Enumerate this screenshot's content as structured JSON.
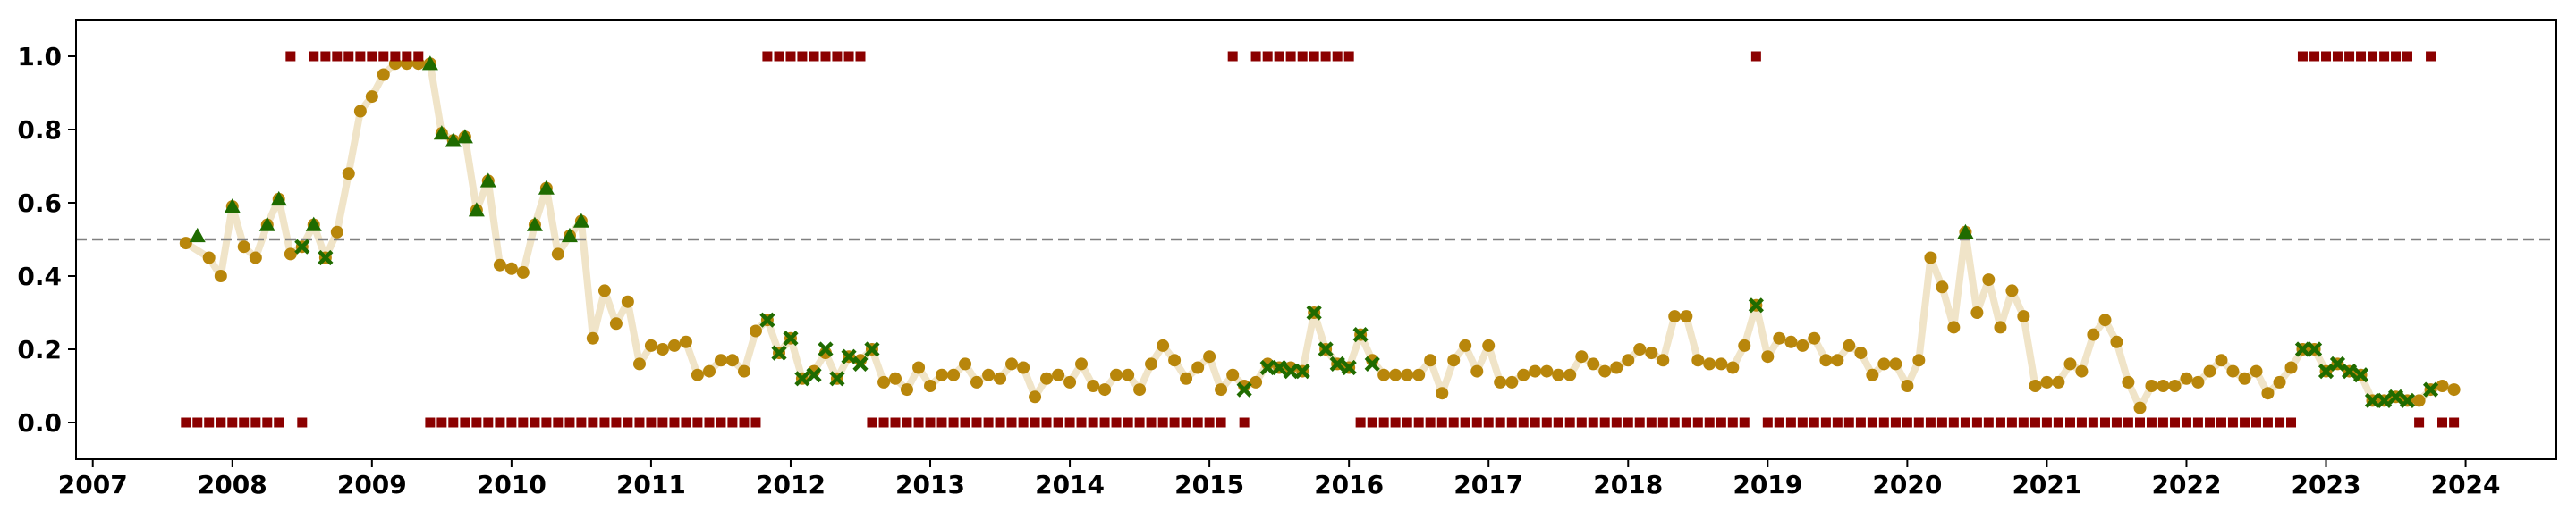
{
  "chart_data": {
    "type": "scatter",
    "title": "",
    "xlabel": "",
    "ylabel": "",
    "x_ticks": [
      "2007",
      "2008",
      "2009",
      "2010",
      "2011",
      "2012",
      "2013",
      "2014",
      "2015",
      "2016",
      "2017",
      "2018",
      "2019",
      "2020",
      "2021",
      "2022",
      "2023",
      "2024"
    ],
    "y_ticks": [
      "0.0",
      "0.2",
      "0.4",
      "0.6",
      "0.8",
      "1.0"
    ],
    "xlim": [
      2006.88,
      2024.65
    ],
    "ylim": [
      -0.1,
      1.1
    ],
    "grid": false,
    "legend": "none",
    "reference_line": {
      "y": 0.5,
      "style": "dashed",
      "color": "#808080"
    },
    "colors": {
      "line": "#f0e4c8",
      "circle": "#b8860b",
      "triangle": "#1f6b00",
      "cross": "#1f6b00",
      "square": "#8b0000"
    },
    "series": [
      {
        "marker": "circle-with-line",
        "x": [
          2007.667,
          2007.833,
          2007.917,
          2008.0,
          2008.083,
          2008.167,
          2008.25,
          2008.333,
          2008.417,
          2008.5,
          2008.583,
          2008.667,
          2008.75,
          2008.833,
          2008.917,
          2009.0,
          2009.083,
          2009.167,
          2009.25,
          2009.333,
          2009.417,
          2009.5,
          2009.583,
          2009.667,
          2009.75,
          2009.833,
          2009.917,
          2010.0,
          2010.083,
          2010.167,
          2010.25,
          2010.333,
          2010.417,
          2010.5,
          2010.583,
          2010.667,
          2010.75,
          2010.833,
          2010.917,
          2011.0,
          2011.083,
          2011.167,
          2011.25,
          2011.333,
          2011.417,
          2011.5,
          2011.583,
          2011.667,
          2011.75,
          2011.833,
          2011.917,
          2012.0,
          2012.083,
          2012.167,
          2012.25,
          2012.333,
          2012.417,
          2012.5,
          2012.583,
          2012.667,
          2012.75,
          2012.833,
          2012.917,
          2013.0,
          2013.083,
          2013.167,
          2013.25,
          2013.333,
          2013.417,
          2013.5,
          2013.583,
          2013.667,
          2013.75,
          2013.833,
          2013.917,
          2014.0,
          2014.083,
          2014.167,
          2014.25,
          2014.333,
          2014.417,
          2014.5,
          2014.583,
          2014.667,
          2014.75,
          2014.833,
          2014.917,
          2015.0,
          2015.083,
          2015.167,
          2015.25,
          2015.333,
          2015.417,
          2015.5,
          2015.583,
          2015.667,
          2015.75,
          2015.833,
          2015.917,
          2016.0,
          2016.083,
          2016.167,
          2016.25,
          2016.333,
          2016.417,
          2016.5,
          2016.583,
          2016.667,
          2016.75,
          2016.833,
          2016.917,
          2017.0,
          2017.083,
          2017.167,
          2017.25,
          2017.333,
          2017.417,
          2017.5,
          2017.583,
          2017.667,
          2017.75,
          2017.833,
          2017.917,
          2018.0,
          2018.083,
          2018.167,
          2018.25,
          2018.333,
          2018.417,
          2018.5,
          2018.583,
          2018.667,
          2018.75,
          2018.833,
          2018.917,
          2019.0,
          2019.083,
          2019.167,
          2019.25,
          2019.333,
          2019.417,
          2019.5,
          2019.583,
          2019.667,
          2019.75,
          2019.833,
          2019.917,
          2020.0,
          2020.083,
          2020.167,
          2020.25,
          2020.333,
          2020.417,
          2020.5,
          2020.583,
          2020.667,
          2020.75,
          2020.833,
          2020.917,
          2021.0,
          2021.083,
          2021.167,
          2021.25,
          2021.333,
          2021.417,
          2021.5,
          2021.583,
          2021.667,
          2021.75,
          2021.833,
          2021.917,
          2022.0,
          2022.083,
          2022.167,
          2022.25,
          2022.333,
          2022.417,
          2022.5,
          2022.583,
          2022.667,
          2022.75,
          2022.833,
          2022.917,
          2023.0,
          2023.083,
          2023.167,
          2023.25,
          2023.333,
          2023.417,
          2023.5,
          2023.583,
          2023.667,
          2023.75,
          2023.833,
          2023.917
        ],
        "y": [
          0.49,
          0.45,
          0.4,
          0.59,
          0.48,
          0.45,
          0.54,
          0.61,
          0.46,
          0.48,
          0.54,
          0.45,
          0.52,
          0.68,
          0.85,
          0.89,
          0.95,
          0.98,
          0.98,
          0.98,
          0.98,
          0.79,
          0.77,
          0.78,
          0.58,
          0.66,
          0.43,
          0.42,
          0.41,
          0.54,
          0.64,
          0.46,
          0.51,
          0.55,
          0.23,
          0.36,
          0.27,
          0.33,
          0.16,
          0.21,
          0.2,
          0.21,
          0.22,
          0.13,
          0.14,
          0.17,
          0.17,
          0.14,
          0.25,
          0.28,
          0.19,
          0.23,
          0.12,
          0.14,
          0.19,
          0.12,
          0.18,
          0.17,
          0.2,
          0.11,
          0.12,
          0.09,
          0.15,
          0.1,
          0.13,
          0.13,
          0.16,
          0.11,
          0.13,
          0.12,
          0.16,
          0.15,
          0.07,
          0.12,
          0.13,
          0.11,
          0.16,
          0.1,
          0.09,
          0.13,
          0.13,
          0.09,
          0.16,
          0.21,
          0.17,
          0.12,
          0.15,
          0.18,
          0.09,
          0.13,
          0.1,
          0.11,
          0.16,
          0.15,
          0.15,
          0.14,
          0.3,
          0.2,
          0.16,
          0.15,
          0.24,
          0.17,
          0.13,
          0.13,
          0.13,
          0.13,
          0.17,
          0.08,
          0.17,
          0.21,
          0.14,
          0.21,
          0.11,
          0.11,
          0.13,
          0.14,
          0.14,
          0.13,
          0.13,
          0.18,
          0.16,
          0.14,
          0.15,
          0.17,
          0.2,
          0.19,
          0.17,
          0.29,
          0.29,
          0.17,
          0.16,
          0.16,
          0.15,
          0.21,
          0.32,
          0.18,
          0.23,
          0.22,
          0.21,
          0.23,
          0.17,
          0.17,
          0.21,
          0.19,
          0.13,
          0.16,
          0.16,
          0.1,
          0.17,
          0.45,
          0.37,
          0.26,
          0.52,
          0.3,
          0.39,
          0.26,
          0.36,
          0.29,
          0.1,
          0.11,
          0.11,
          0.16,
          0.14,
          0.24,
          0.28,
          0.22,
          0.11,
          0.04,
          0.1,
          0.1,
          0.1,
          0.12,
          0.11,
          0.14,
          0.17,
          0.14,
          0.12,
          0.14,
          0.08,
          0.11,
          0.15,
          0.2,
          0.2,
          0.14,
          0.16,
          0.14,
          0.13,
          0.06,
          0.06,
          0.07,
          0.06,
          0.06,
          0.09,
          0.1,
          0.09
        ]
      },
      {
        "marker": "triangle",
        "x": [
          2007.75,
          2008.0,
          2008.25,
          2008.333,
          2008.583,
          2009.417,
          2009.5,
          2009.583,
          2009.667,
          2009.75,
          2009.833,
          2010.167,
          2010.25,
          2010.417,
          2010.5,
          2020.417
        ],
        "y": [
          0.51,
          0.59,
          0.54,
          0.61,
          0.54,
          0.98,
          0.79,
          0.77,
          0.78,
          0.58,
          0.66,
          0.54,
          0.64,
          0.51,
          0.55,
          0.52
        ]
      },
      {
        "marker": "cross",
        "x": [
          2008.5,
          2008.667,
          2011.833,
          2011.917,
          2012.0,
          2012.083,
          2012.167,
          2012.25,
          2012.333,
          2012.417,
          2012.5,
          2012.583,
          2015.25,
          2015.417,
          2015.5,
          2015.583,
          2015.667,
          2015.75,
          2015.833,
          2015.917,
          2016.0,
          2016.083,
          2016.167,
          2018.917,
          2022.833,
          2022.917,
          2023.0,
          2023.083,
          2023.167,
          2023.25,
          2023.333,
          2023.417,
          2023.5,
          2023.583,
          2023.75
        ],
        "y": [
          0.48,
          0.45,
          0.28,
          0.19,
          0.23,
          0.12,
          0.13,
          0.2,
          0.12,
          0.18,
          0.16,
          0.2,
          0.09,
          0.15,
          0.15,
          0.14,
          0.14,
          0.3,
          0.2,
          0.16,
          0.15,
          0.24,
          0.16,
          0.32,
          0.2,
          0.2,
          0.14,
          0.16,
          0.14,
          0.13,
          0.06,
          0.06,
          0.07,
          0.06,
          0.09
        ]
      },
      {
        "marker": "square",
        "x": [
          2007.667,
          2007.75,
          2007.833,
          2007.917,
          2008.0,
          2008.083,
          2008.167,
          2008.25,
          2008.333,
          2008.417,
          2008.5,
          2008.583,
          2008.667,
          2008.75,
          2008.833,
          2008.917,
          2009.0,
          2009.083,
          2009.167,
          2009.25,
          2009.333,
          2009.417,
          2009.5,
          2009.583,
          2009.667,
          2009.75,
          2009.833,
          2009.917,
          2010.0,
          2010.083,
          2010.167,
          2010.25,
          2010.333,
          2010.417,
          2010.5,
          2010.583,
          2010.667,
          2010.75,
          2010.833,
          2010.917,
          2011.0,
          2011.083,
          2011.167,
          2011.25,
          2011.333,
          2011.417,
          2011.5,
          2011.583,
          2011.667,
          2011.75,
          2011.833,
          2011.917,
          2012.0,
          2012.083,
          2012.167,
          2012.25,
          2012.333,
          2012.417,
          2012.5,
          2012.583,
          2012.667,
          2012.75,
          2012.833,
          2012.917,
          2013.0,
          2013.083,
          2013.167,
          2013.25,
          2013.333,
          2013.417,
          2013.5,
          2013.583,
          2013.667,
          2013.75,
          2013.833,
          2013.917,
          2014.0,
          2014.083,
          2014.167,
          2014.25,
          2014.333,
          2014.417,
          2014.5,
          2014.583,
          2014.667,
          2014.75,
          2014.833,
          2014.917,
          2015.0,
          2015.083,
          2015.167,
          2015.25,
          2015.333,
          2015.417,
          2015.5,
          2015.583,
          2015.667,
          2015.75,
          2015.833,
          2015.917,
          2016.0,
          2016.083,
          2016.167,
          2016.25,
          2016.333,
          2016.417,
          2016.5,
          2016.583,
          2016.667,
          2016.75,
          2016.833,
          2016.917,
          2017.0,
          2017.083,
          2017.167,
          2017.25,
          2017.333,
          2017.417,
          2017.5,
          2017.583,
          2017.667,
          2017.75,
          2017.833,
          2017.917,
          2018.0,
          2018.083,
          2018.167,
          2018.25,
          2018.333,
          2018.417,
          2018.5,
          2018.583,
          2018.667,
          2018.75,
          2018.833,
          2018.917,
          2019.0,
          2019.083,
          2019.167,
          2019.25,
          2019.333,
          2019.417,
          2019.5,
          2019.583,
          2019.667,
          2019.75,
          2019.833,
          2019.917,
          2020.0,
          2020.083,
          2020.167,
          2020.25,
          2020.333,
          2020.417,
          2020.5,
          2020.583,
          2020.667,
          2020.75,
          2020.833,
          2020.917,
          2021.0,
          2021.083,
          2021.167,
          2021.25,
          2021.333,
          2021.417,
          2021.5,
          2021.583,
          2021.667,
          2021.75,
          2021.833,
          2021.917,
          2022.0,
          2022.083,
          2022.167,
          2022.25,
          2022.333,
          2022.417,
          2022.5,
          2022.583,
          2022.667,
          2022.75,
          2022.833,
          2022.917,
          2023.0,
          2023.083,
          2023.167,
          2023.25,
          2023.333,
          2023.417,
          2023.5,
          2023.583,
          2023.667,
          2023.75,
          2023.833,
          2023.917
        ],
        "y": [
          0,
          0,
          0,
          0,
          0,
          0,
          0,
          0,
          0,
          1,
          0,
          1,
          1,
          1,
          1,
          1,
          1,
          1,
          1,
          1,
          1,
          0,
          0,
          0,
          0,
          0,
          0,
          0,
          0,
          0,
          0,
          0,
          0,
          0,
          0,
          0,
          0,
          0,
          0,
          0,
          0,
          0,
          0,
          0,
          0,
          0,
          0,
          0,
          0,
          0,
          1,
          1,
          1,
          1,
          1,
          1,
          1,
          1,
          1,
          0,
          0,
          0,
          0,
          0,
          0,
          0,
          0,
          0,
          0,
          0,
          0,
          0,
          0,
          0,
          0,
          0,
          0,
          0,
          0,
          0,
          0,
          0,
          0,
          0,
          0,
          0,
          0,
          0,
          0,
          0,
          1,
          0,
          1,
          1,
          1,
          1,
          1,
          1,
          1,
          1,
          1,
          0,
          0,
          0,
          0,
          0,
          0,
          0,
          0,
          0,
          0,
          0,
          0,
          0,
          0,
          0,
          0,
          0,
          0,
          0,
          0,
          0,
          0,
          0,
          0,
          0,
          0,
          0,
          0,
          0,
          0,
          0,
          0,
          0,
          0,
          1,
          0,
          0,
          0,
          0,
          0,
          0,
          0,
          0,
          0,
          0,
          0,
          0,
          0,
          0,
          0,
          0,
          0,
          0,
          0,
          0,
          0,
          0,
          0,
          0,
          0,
          0,
          0,
          0,
          0,
          0,
          0,
          0,
          0,
          0,
          0,
          0,
          0,
          0,
          0,
          0,
          0,
          0,
          0,
          0,
          0,
          0,
          1,
          1,
          1,
          1,
          1,
          1,
          1,
          1,
          1,
          1,
          0,
          1,
          0,
          0
        ]
      }
    ]
  }
}
